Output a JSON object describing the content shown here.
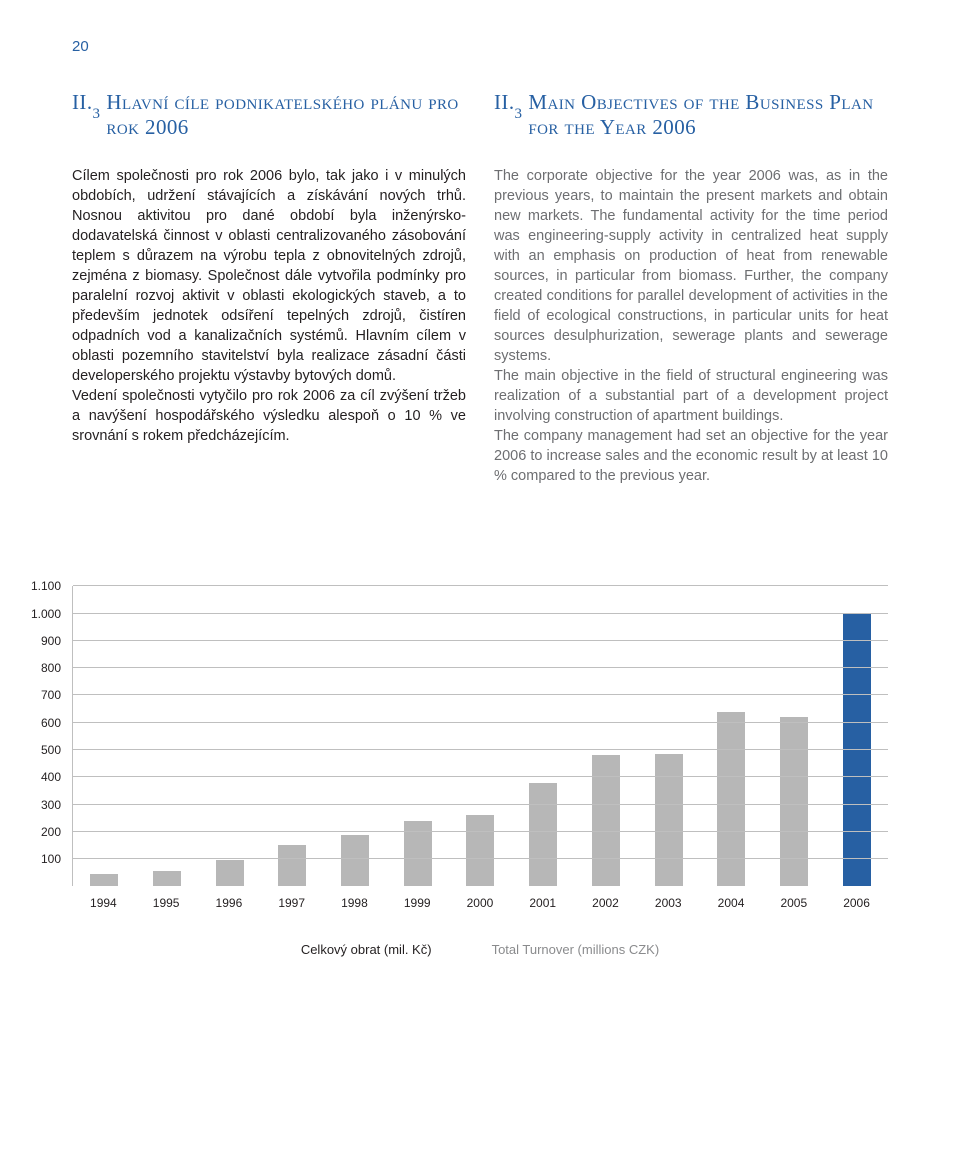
{
  "page_number": "20",
  "left": {
    "section_number": "II.3",
    "heading": "Hlavní cíle podnikatelského plánu pro rok 2006",
    "paragraphs": [
      "Cílem společnosti pro rok 2006 bylo, tak jako i v minulých obdobích, udržení stávajících a získávání nových trhů. Nosnou aktivitou pro dané období byla inženýrsko-dodavatelská činnost v oblasti centralizovaného zásobování teplem s důrazem na výrobu tepla z obnovitelných zdrojů, zejména z biomasy. Společnost dále vytvořila podmínky pro paralelní rozvoj aktivit v oblasti ekologických staveb, a to především jednotek odsíření tepelných zdrojů, čistíren odpadních vod a kanalizačních systémů. Hlavním cílem v oblasti pozemního stavitelství byla realizace zásadní části developerského projektu výstavby bytových domů.",
      "Vedení společnosti vytyčilo pro rok 2006 za cíl zvýšení tržeb a navýšení hospodářského výsledku alespoň o 10 % ve srovnání s rokem předcházejícím."
    ]
  },
  "right": {
    "section_number": "II.3",
    "heading": "Main Objectives of the Business Plan for the Year 2006",
    "paragraphs": [
      "The corporate objective for the year 2006 was, as in the previous years, to maintain the present markets and obtain new markets. The fundamental activity for the time period was engineering-supply activity in centralized heat supply with an emphasis on production of heat from renewable sources, in particular from biomass. Further, the company created conditions for parallel development of activities in the field of ecological constructions, in particular units for heat sources desulphurization, sewerage plants and sewerage systems.",
      "The main objective in the field of structural engineering was realization of a substantial part of a development project involving construction of apartment buildings.",
      "The company management had set an objective for the year 2006 to increase sales and the economic result by at least 10 % compared to the previous year."
    ]
  },
  "chart": {
    "type": "bar",
    "ymin": 0,
    "ymax": 1100,
    "yticks": [
      100,
      200,
      300,
      400,
      500,
      600,
      700,
      800,
      900,
      1000,
      1100
    ],
    "ytick_labels": [
      "100",
      "200",
      "300",
      "400",
      "500",
      "600",
      "700",
      "800",
      "900",
      "1.000",
      "1.100"
    ],
    "categories": [
      "1994",
      "1995",
      "1996",
      "1997",
      "1998",
      "1999",
      "2000",
      "2001",
      "2002",
      "2003",
      "2004",
      "2005",
      "2006"
    ],
    "values": [
      45,
      55,
      95,
      150,
      190,
      240,
      260,
      380,
      480,
      485,
      640,
      620,
      1000
    ],
    "highlight_index": 12,
    "bar_color": "#b7b7b7",
    "highlight_color": "#2760a3",
    "grid_color": "#bfbfbf",
    "legend_left": "Celkový obrat (mil. Kč)",
    "legend_right": "Total Turnover (millions CZK)"
  }
}
